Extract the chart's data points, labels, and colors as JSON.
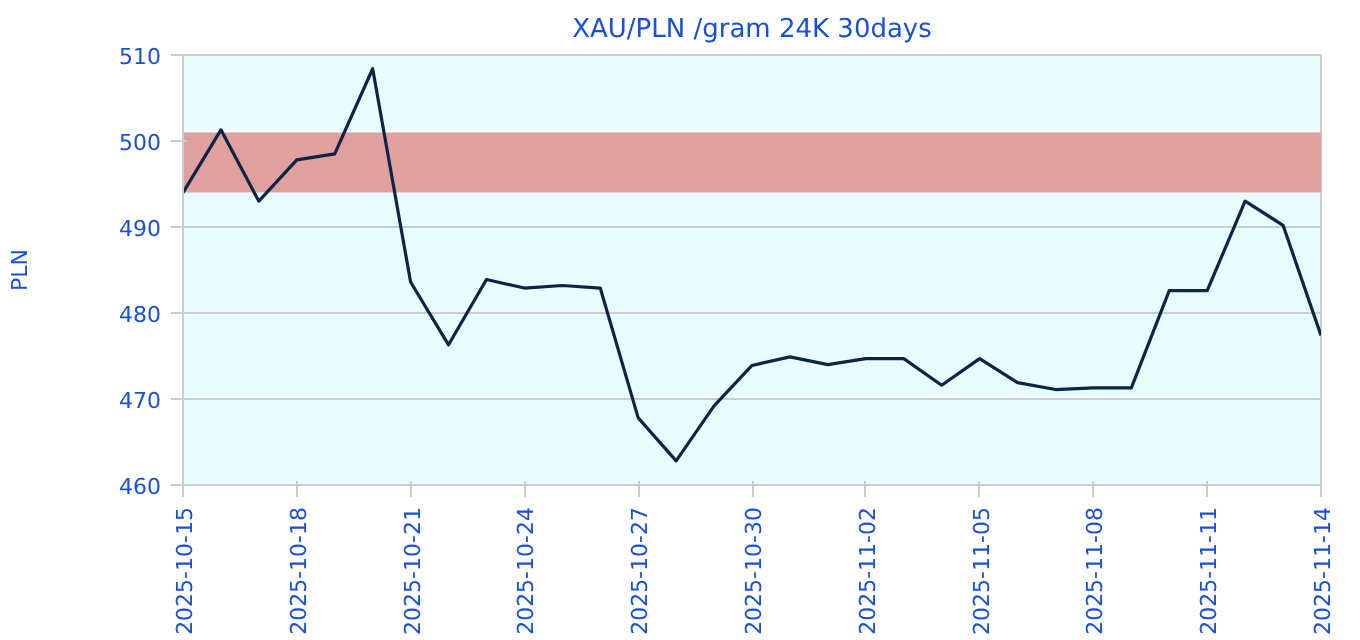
{
  "chart_data": {
    "type": "line",
    "title": "XAU/PLN /gram 24K 30days",
    "ylabel": "PLN",
    "x": [
      "2025-10-15",
      "2025-10-16",
      "2025-10-17",
      "2025-10-18",
      "2025-10-19",
      "2025-10-20",
      "2025-10-21",
      "2025-10-22",
      "2025-10-23",
      "2025-10-24",
      "2025-10-25",
      "2025-10-26",
      "2025-10-27",
      "2025-10-28",
      "2025-10-29",
      "2025-10-30",
      "2025-10-31",
      "2025-11-01",
      "2025-11-02",
      "2025-11-03",
      "2025-11-04",
      "2025-11-05",
      "2025-11-06",
      "2025-11-07",
      "2025-11-08",
      "2025-11-09",
      "2025-11-10",
      "2025-11-11",
      "2025-11-12",
      "2025-11-13",
      "2025-11-14"
    ],
    "series": [
      {
        "color": "#0d2545",
        "values": [
          494.0,
          501.3,
          493.0,
          497.8,
          498.5,
          508.4,
          483.6,
          476.3,
          483.9,
          482.9,
          483.2,
          482.9,
          467.8,
          462.8,
          469.2,
          473.9,
          474.9,
          474.0,
          474.7,
          474.7,
          471.6,
          474.7,
          471.9,
          471.1,
          471.3,
          471.3,
          482.6,
          482.6,
          493.0,
          490.2,
          477.4
        ]
      }
    ],
    "xlim": [
      "2025-10-15",
      "2025-11-14"
    ],
    "xticks": [
      "2025-10-15",
      "2025-10-18",
      "2025-10-21",
      "2025-10-24",
      "2025-10-27",
      "2025-10-30",
      "2025-11-02",
      "2025-11-05",
      "2025-11-08",
      "2025-11-11",
      "2025-11-14"
    ],
    "ylim": [
      460,
      510
    ],
    "yticks": [
      460,
      470,
      480,
      490,
      500,
      510
    ],
    "bands": [
      {
        "axis": "y",
        "from": 494,
        "to": 501,
        "color": "#e0a0a0"
      }
    ],
    "grid": "y",
    "line_style": "solid",
    "marker": "none"
  }
}
